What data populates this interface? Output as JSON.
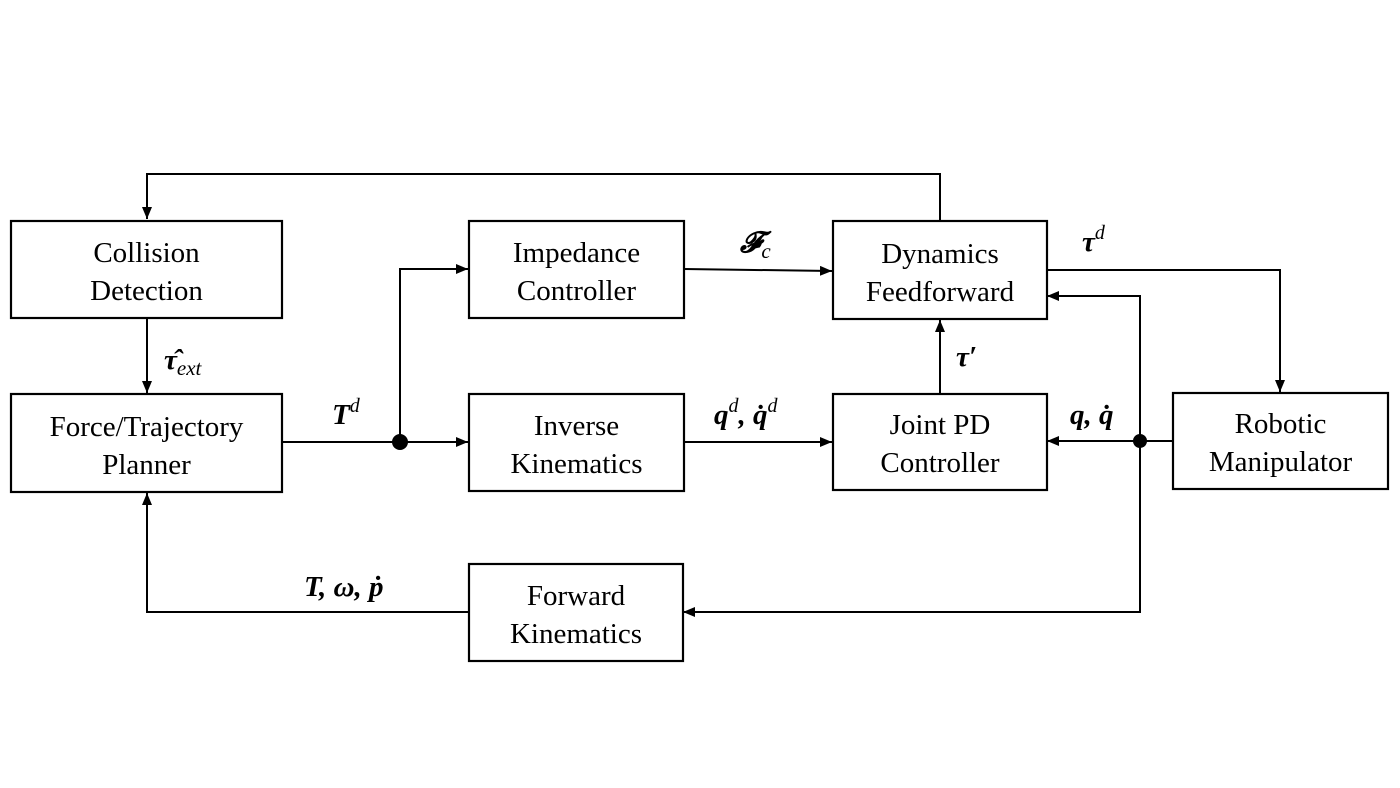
{
  "blocks": {
    "collision_detection": {
      "line1": "Collision",
      "line2": "Detection"
    },
    "planner": {
      "line1": "Force/Trajectory",
      "line2": "Planner"
    },
    "impedance": {
      "line1": "Impedance",
      "line2": "Controller"
    },
    "inverse_kin": {
      "line1": "Inverse",
      "line2": "Kinematics"
    },
    "dynamics_ff": {
      "line1": "Dynamics",
      "line2": "Feedforward"
    },
    "joint_pd": {
      "line1": "Joint PD",
      "line2": "Controller"
    },
    "robot": {
      "line1": "Robotic",
      "line2": "Manipulator"
    },
    "forward_kin": {
      "line1": "Forward",
      "line2": "Kinematics"
    }
  },
  "signals": {
    "tau_ext_hat": {
      "symbol": "τ̂",
      "sub": "ext"
    },
    "T_d": {
      "symbol": "T",
      "sup": "d"
    },
    "F_c": {
      "symbol": "𝓕",
      "sub": "c"
    },
    "tau_d": {
      "symbol": "τ",
      "sup": "d"
    },
    "tau_prime": {
      "symbol": "τ′"
    },
    "q_d": {
      "symbol1": "q",
      "sup1": "d",
      "sep": ", ",
      "symbol2": "q̇",
      "sup2": "d"
    },
    "q_qdot": {
      "text": "q, q̇"
    },
    "fk_out": {
      "text": "T, ω, ṗ"
    }
  },
  "colors": {
    "stroke": "#000000",
    "background": "#ffffff"
  }
}
